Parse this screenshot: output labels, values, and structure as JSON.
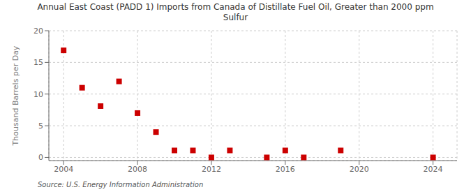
{
  "chart_data": {
    "type": "scatter",
    "title": "Annual East Coast (PADD 1) Imports from Canada of Distillate Fuel Oil, Greater than 2000 ppm\nSulfur",
    "y_label": "Thousand Barrels per Day",
    "annotations": [
      "Source: U.S. Energy Information Administration"
    ],
    "x": [
      2004,
      2005,
      2006,
      2007,
      2008,
      2009,
      2010,
      2011,
      2012,
      2013,
      2015,
      2016,
      2017,
      2019,
      2024
    ],
    "values": [
      16.9,
      11.0,
      8.1,
      12.0,
      7.0,
      4.0,
      1.1,
      1.1,
      0.0,
      1.1,
      0.0,
      1.1,
      0.0,
      1.1,
      0.0
    ],
    "color": "#cc0000",
    "marker": "square",
    "xlim": [
      2003.2,
      2025.3
    ],
    "xticks": [
      2004,
      2008,
      2012,
      2016,
      2020,
      2024
    ],
    "ylim": [
      -0.5,
      20
    ],
    "yticks": [
      0,
      5,
      10,
      15,
      20
    ],
    "grid": true
  }
}
